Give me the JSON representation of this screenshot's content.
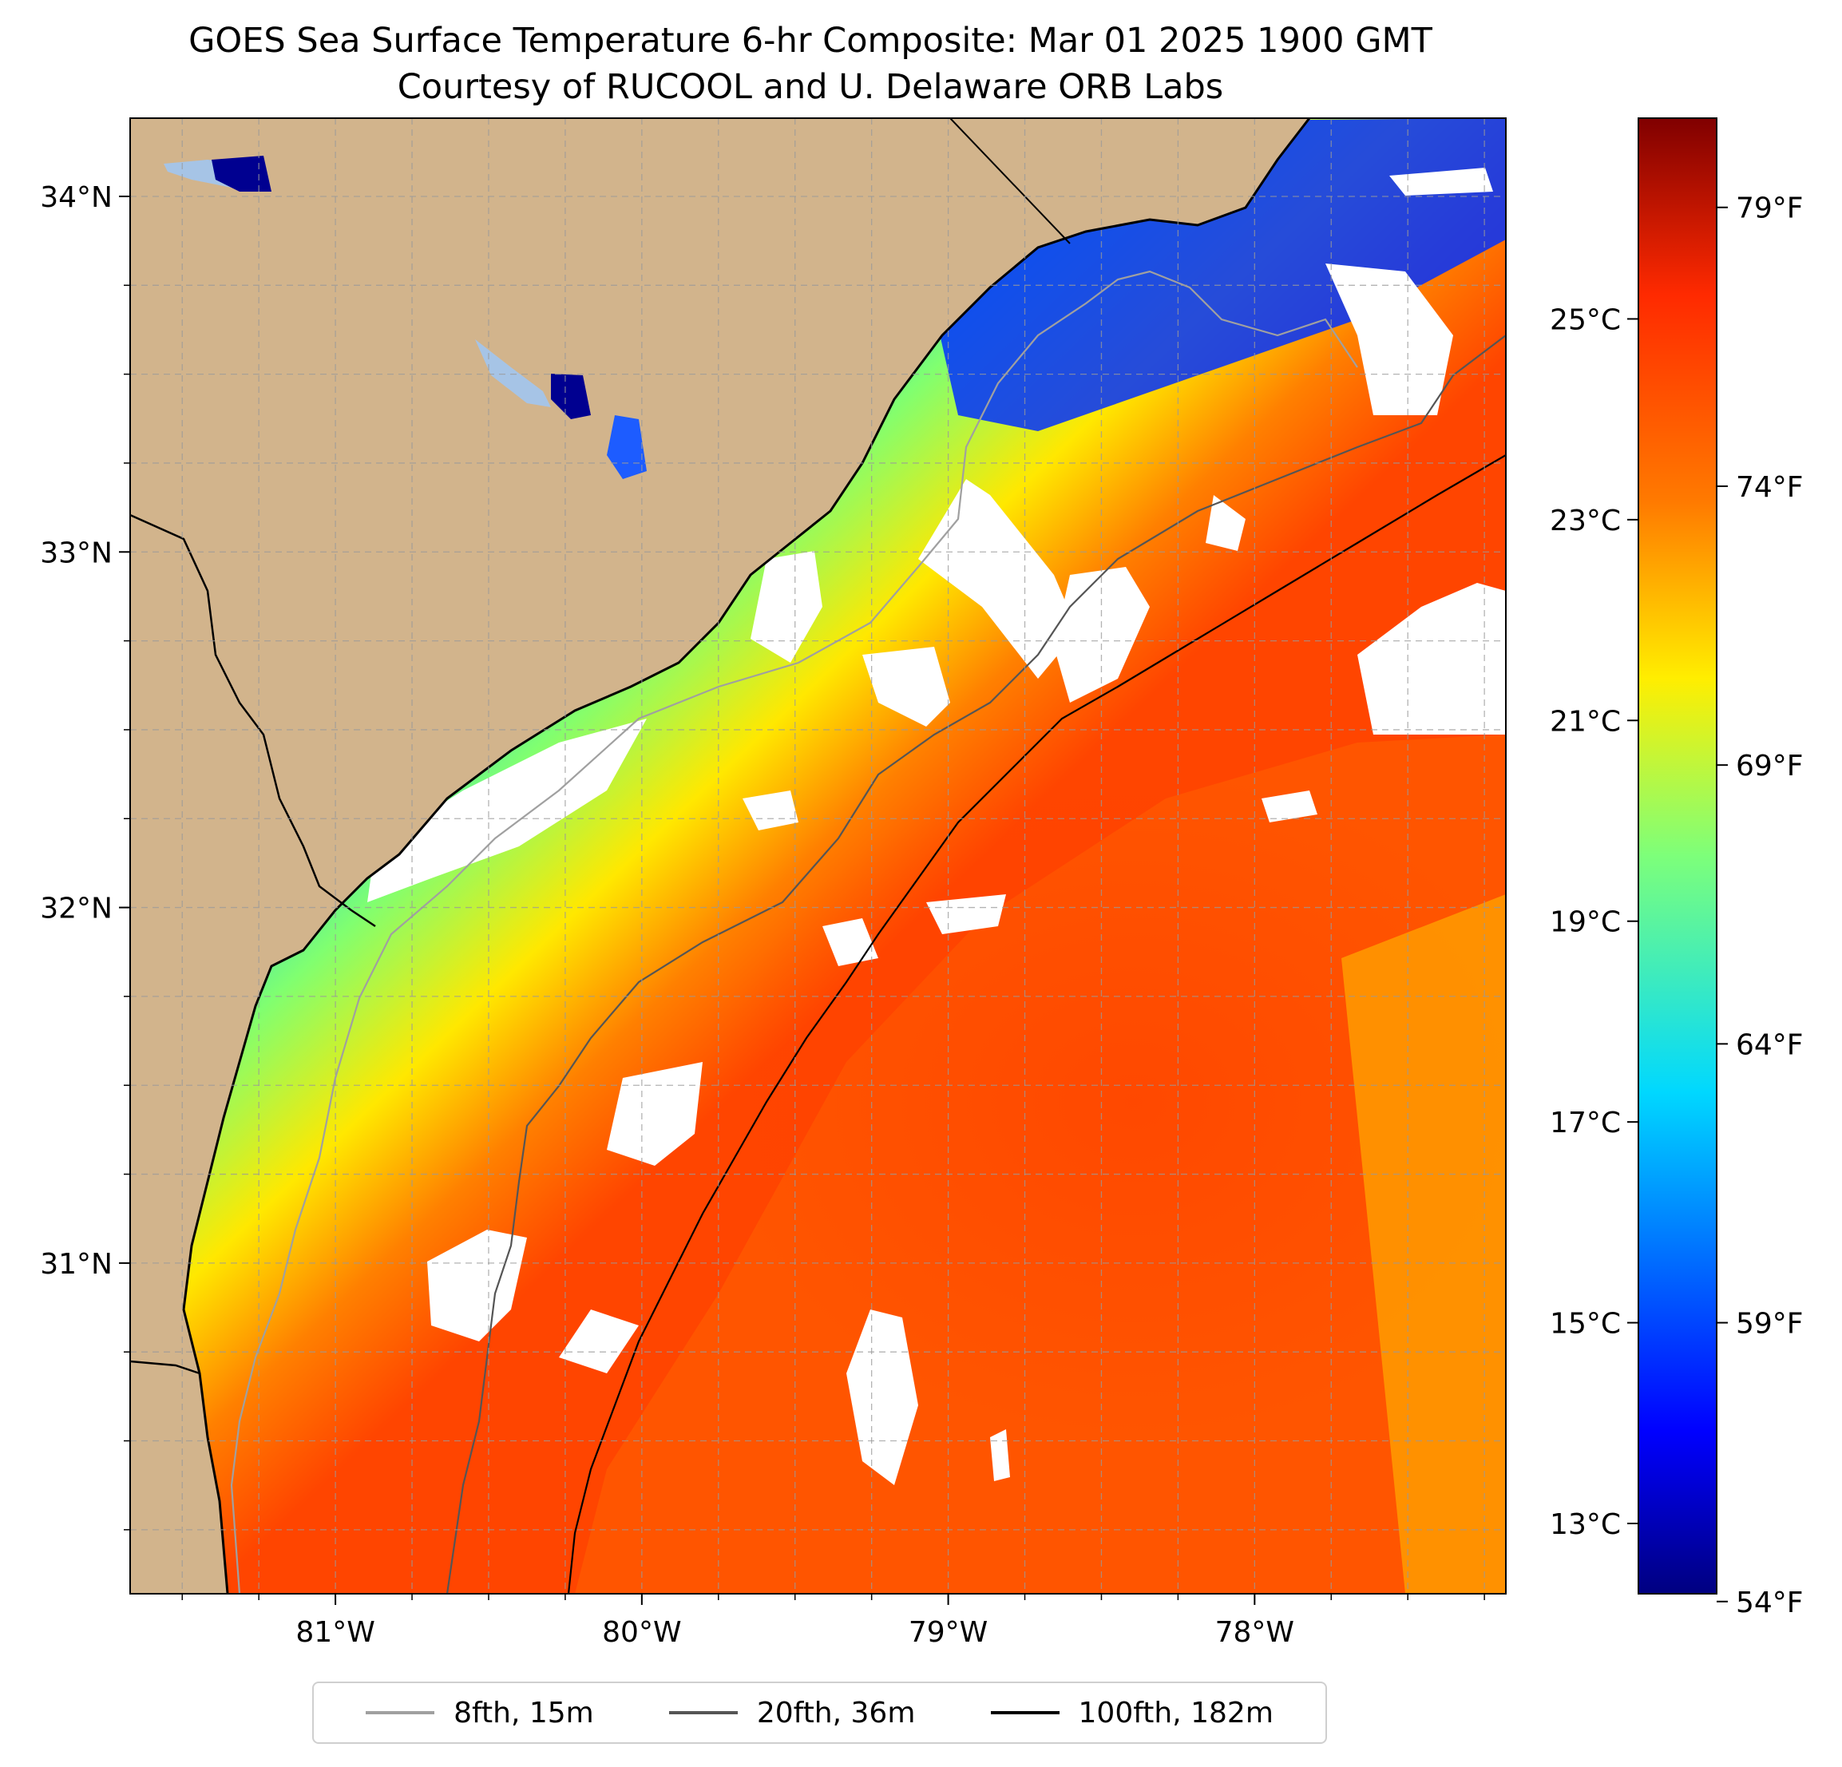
{
  "title": {
    "line1": "GOES Sea Surface Temperature 6-hr Composite: Mar 01 2025 1900 GMT",
    "line2": "Courtesy of RUCOOL and U. Delaware ORB Labs"
  },
  "map": {
    "lon_range": [
      -81.67,
      -77.18
    ],
    "lat_range": [
      30.07,
      34.22
    ],
    "lat_ticks": [
      {
        "value": 34,
        "label": "34°N"
      },
      {
        "value": 33,
        "label": "33°N"
      },
      {
        "value": 32,
        "label": "32°N"
      },
      {
        "value": 31,
        "label": "31°N"
      }
    ],
    "lon_ticks": [
      {
        "value": -81,
        "label": "81°W"
      },
      {
        "value": -80,
        "label": "80°W"
      },
      {
        "value": -79,
        "label": "79°W"
      },
      {
        "value": -78,
        "label": "78°W"
      }
    ],
    "gridlines": "dashed",
    "colors": {
      "land": "#d2b48c",
      "lakes": "#a6c4e6",
      "no_data": "#ffffff",
      "coastline": "#000000"
    }
  },
  "colorbar": {
    "colormap": "jet",
    "celsius_range": [
      12.3,
      27.0
    ],
    "celsius_ticks": [
      {
        "value": 13,
        "label": "13°C"
      },
      {
        "value": 15,
        "label": "15°C"
      },
      {
        "value": 17,
        "label": "17°C"
      },
      {
        "value": 19,
        "label": "19°C"
      },
      {
        "value": 21,
        "label": "21°C"
      },
      {
        "value": 23,
        "label": "23°C"
      },
      {
        "value": 25,
        "label": "25°C"
      }
    ],
    "fahrenheit_ticks": [
      {
        "value": 54,
        "label": "54°F"
      },
      {
        "value": 59,
        "label": "59°F"
      },
      {
        "value": 64,
        "label": "64°F"
      },
      {
        "value": 69,
        "label": "69°F"
      },
      {
        "value": 74,
        "label": "74°F"
      },
      {
        "value": 79,
        "label": "79°F"
      }
    ]
  },
  "legend": {
    "items": [
      {
        "label": "8fth, 15m",
        "color": "#a0a0a0"
      },
      {
        "label": "20fth, 36m",
        "color": "#555555"
      },
      {
        "label": "100fth, 182m",
        "color": "#000000"
      }
    ]
  }
}
